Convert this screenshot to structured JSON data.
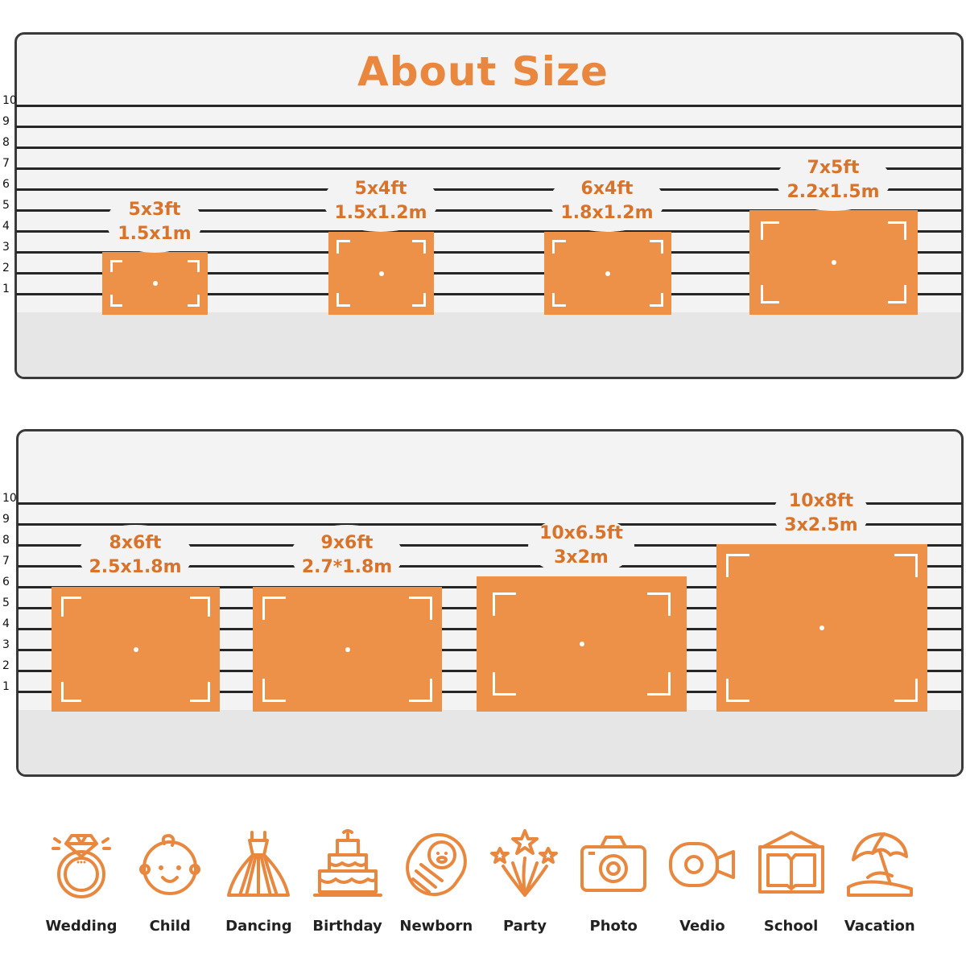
{
  "title": "About Size",
  "scale_ticks": [
    "10",
    "9",
    "8",
    "7",
    "6",
    "5",
    "4",
    "3",
    "2",
    "1"
  ],
  "panel1_sizes": [
    {
      "ft": "5x3ft",
      "m": "1.5x1m"
    },
    {
      "ft": "5x4ft",
      "m": "1.5x1.2m"
    },
    {
      "ft": "6x4ft",
      "m": "1.8x1.2m"
    },
    {
      "ft": "7x5ft",
      "m": "2.2x1.5m"
    }
  ],
  "panel2_sizes": [
    {
      "ft": "8x6ft",
      "m": "2.5x1.8m"
    },
    {
      "ft": "9x6ft",
      "m": "2.7*1.8m"
    },
    {
      "ft": "10x6.5ft",
      "m": "3x2m"
    },
    {
      "ft": "10x8ft",
      "m": "3x2.5m"
    }
  ],
  "accent_color": "#ee9148",
  "text_color": "#d9732a",
  "uses": [
    {
      "label": "Wedding",
      "icon": "ring-icon"
    },
    {
      "label": "Child",
      "icon": "baby-face-icon"
    },
    {
      "label": "Dancing",
      "icon": "dress-icon"
    },
    {
      "label": "Birthday",
      "icon": "cake-icon"
    },
    {
      "label": "Newborn",
      "icon": "swaddled-baby-icon"
    },
    {
      "label": "Party",
      "icon": "fireworks-icon"
    },
    {
      "label": "Photo",
      "icon": "camera-icon"
    },
    {
      "label": "Vedio",
      "icon": "video-camera-icon"
    },
    {
      "label": "School",
      "icon": "open-book-icon"
    },
    {
      "label": "Vacation",
      "icon": "beach-umbrella-icon"
    }
  ]
}
